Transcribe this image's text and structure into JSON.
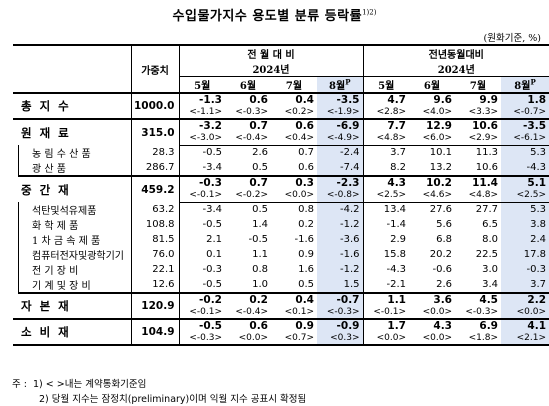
{
  "title": "수입물가지수 용도별 분류 등락률",
  "title_sup": "1)2)",
  "unit": "(원화기준, %)",
  "headers": {
    "weight": "가중치",
    "mom_group": "전 월 대 비",
    "yoy_group": "전년동월대비",
    "year": "2024년",
    "months": [
      "5월",
      "6월",
      "7월",
      "8월"
    ],
    "prelim_mark": "P"
  },
  "rows": [
    {
      "label": "총 지 수",
      "type": "main",
      "weight": "1000.0",
      "mom": [
        "-1.3",
        "0.6",
        "0.4",
        "-3.5"
      ],
      "mom_c": [
        "<-1.1>",
        "<-0.3>",
        "<0.2>",
        "<-1.9>"
      ],
      "yoy": [
        "4.7",
        "9.6",
        "9.9",
        "1.8"
      ],
      "yoy_c": [
        "<2.8>",
        "<4.0>",
        "<3.3>",
        "<-0.7>"
      ]
    },
    {
      "label": "원 재 료",
      "type": "main",
      "weight": "315.0",
      "mom": [
        "-3.2",
        "0.7",
        "0.6",
        "-6.9"
      ],
      "mom_c": [
        "<-3.0>",
        "<-0.4>",
        "<0.4>",
        "<-4.9>"
      ],
      "yoy": [
        "7.7",
        "12.9",
        "10.6",
        "-3.5"
      ],
      "yoy_c": [
        "<4.8>",
        "<6.0>",
        "<2.9>",
        "<-6.1>"
      ]
    },
    {
      "label": "농 림 수 산 품",
      "type": "sub",
      "weight": "28.3",
      "mom": [
        "-0.5",
        "2.6",
        "0.7",
        "-2.4"
      ],
      "yoy": [
        "3.7",
        "10.1",
        "11.3",
        "5.3"
      ]
    },
    {
      "label": "광 산 품",
      "type": "sub",
      "weight": "286.7",
      "mom": [
        "-3.4",
        "0.5",
        "0.6",
        "-7.4"
      ],
      "yoy": [
        "8.2",
        "13.2",
        "10.6",
        "-4.3"
      ]
    },
    {
      "label": "중 간 재",
      "type": "main",
      "weight": "459.2",
      "mom": [
        "-0.3",
        "0.7",
        "0.3",
        "-2.3"
      ],
      "mom_c": [
        "<-0.1>",
        "<-0.2>",
        "<0.0>",
        "<-0.8>"
      ],
      "yoy": [
        "4.3",
        "10.2",
        "11.4",
        "5.1"
      ],
      "yoy_c": [
        "<2.5>",
        "<4.6>",
        "<4.8>",
        "<2.5>"
      ]
    },
    {
      "label": "석탄및석유제품",
      "type": "sub",
      "weight": "63.2",
      "mom": [
        "-3.4",
        "0.5",
        "0.8",
        "-4.2"
      ],
      "yoy": [
        "13.4",
        "27.6",
        "27.7",
        "5.3"
      ]
    },
    {
      "label": "화 학 제 품",
      "type": "sub",
      "weight": "108.8",
      "mom": [
        "-0.5",
        "1.4",
        "0.2",
        "-1.2"
      ],
      "yoy": [
        "-1.4",
        "5.6",
        "6.5",
        "3.8"
      ]
    },
    {
      "label": "1 차 금 속 제 품",
      "type": "sub",
      "weight": "81.5",
      "mom": [
        "2.1",
        "-0.5",
        "-1.6",
        "-3.6"
      ],
      "yoy": [
        "2.9",
        "6.8",
        "8.0",
        "2.4"
      ]
    },
    {
      "label": "컴퓨터전자및광학기기",
      "type": "sub",
      "weight": "76.0",
      "mom": [
        "0.1",
        "1.1",
        "0.9",
        "-1.6"
      ],
      "yoy": [
        "15.8",
        "20.2",
        "22.5",
        "17.8"
      ]
    },
    {
      "label": "전 기 장 비",
      "type": "sub",
      "weight": "22.1",
      "mom": [
        "-0.3",
        "0.8",
        "1.6",
        "-1.2"
      ],
      "yoy": [
        "-4.3",
        "-0.6",
        "3.0",
        "-0.3"
      ]
    },
    {
      "label": "기 계 및 장 비",
      "type": "sub",
      "weight": "12.6",
      "mom": [
        "-0.5",
        "1.0",
        "0.5",
        "1.5"
      ],
      "yoy": [
        "-2.1",
        "2.6",
        "3.4",
        "3.7"
      ]
    },
    {
      "label": "자 본 재",
      "type": "main",
      "weight": "120.9",
      "mom": [
        "-0.2",
        "0.2",
        "0.4",
        "-0.7"
      ],
      "mom_c": [
        "<-0.1>",
        "<-0.4>",
        "<0.1>",
        "<-0.3>"
      ],
      "yoy": [
        "1.1",
        "3.6",
        "4.5",
        "2.2"
      ],
      "yoy_c": [
        "<-0.1>",
        "<0.0>",
        "<-0.3>",
        "<0.0>"
      ]
    },
    {
      "label": "소 비 재",
      "type": "main",
      "weight": "104.9",
      "mom": [
        "-0.5",
        "0.6",
        "0.9",
        "-0.9"
      ],
      "mom_c": [
        "<-0.3>",
        "<0.0>",
        "<0.7>",
        "<0.3>"
      ],
      "yoy": [
        "1.7",
        "4.3",
        "6.9",
        "4.1"
      ],
      "yoy_c": [
        "<0.0>",
        "<0.0>",
        "<1.8>",
        "<2.1>"
      ]
    }
  ],
  "notes": {
    "prefix": "주 :",
    "n1": "1) < >내는 계약통화기준임",
    "n2": "2) 당월 지수는 잠정치(preliminary)이며 익월 지수 공표시 확정됨"
  }
}
